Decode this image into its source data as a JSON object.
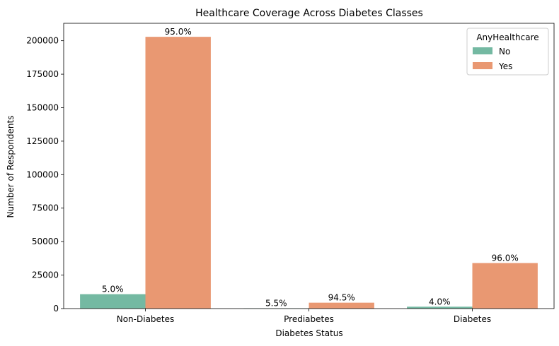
{
  "chart_data": {
    "type": "bar",
    "title": "Healthcare Coverage Across Diabetes Classes",
    "xlabel": "Diabetes Status",
    "ylabel": "Number of Respondents",
    "categories": [
      "Non-Diabetes",
      "Prediabetes",
      "Diabetes"
    ],
    "ylim": [
      0,
      213000
    ],
    "yticks": [
      0,
      25000,
      50000,
      75000,
      100000,
      125000,
      150000,
      175000,
      200000
    ],
    "legend": {
      "title": "AnyHealthcare",
      "placement": "top-right"
    },
    "series": [
      {
        "name": "No",
        "color": "#74b9a2",
        "values": [
          10750,
          250,
          1400
        ],
        "labels": [
          "5.0%",
          "5.5%",
          "4.0%"
        ]
      },
      {
        "name": "Yes",
        "color": "#e99872",
        "values": [
          202900,
          4400,
          34000
        ],
        "labels": [
          "95.0%",
          "94.5%",
          "96.0%"
        ]
      }
    ]
  }
}
